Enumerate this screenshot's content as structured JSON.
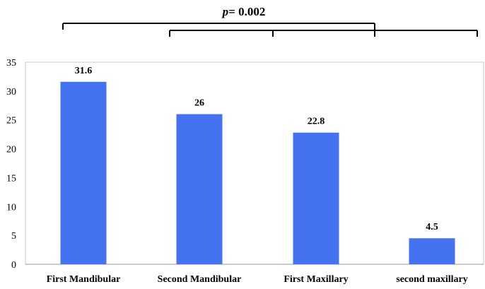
{
  "chart_data": {
    "type": "bar",
    "categories": [
      "First Mandibular",
      "Second Mandibular",
      "First Maxillary",
      "second maxillary"
    ],
    "values": [
      31.6,
      26,
      22.8,
      4.5
    ],
    "value_labels": [
      "31.6",
      "26",
      "22.8",
      "4.5"
    ],
    "ylim": [
      0,
      35
    ],
    "yticks": [
      0,
      5,
      10,
      15,
      20,
      25,
      30,
      35
    ],
    "ytick_labels": [
      "0",
      "5",
      "10",
      "15",
      "20",
      "25",
      "30",
      "35"
    ],
    "bar_color": "#4472f0",
    "grid": false,
    "annotation": {
      "p_symbol": "p",
      "p_text": "= 0.002"
    }
  }
}
